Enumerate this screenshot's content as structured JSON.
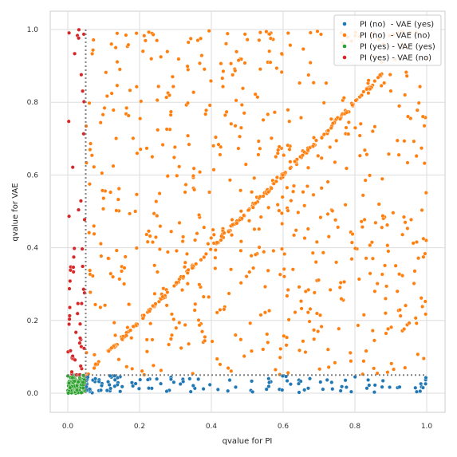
{
  "chart_data": {
    "type": "scatter",
    "title": "",
    "xlabel": "qvalue for PI",
    "ylabel": "qvalue for VAE",
    "xlim": [
      -0.05,
      1.05
    ],
    "ylim": [
      -0.05,
      1.05
    ],
    "xticks": [
      "0.0",
      "0.2",
      "0.4",
      "0.6",
      "0.8",
      "1.0"
    ],
    "yticks": [
      "0.0",
      "0.2",
      "0.4",
      "0.6",
      "0.8",
      "1.0"
    ],
    "grid": true,
    "legend_position": "top-right",
    "threshold": 0.05,
    "series": [
      {
        "name": "PI (no)  - VAE (yes)",
        "color": "#1f77b4"
      },
      {
        "name": "PI (no)  - VAE (no)",
        "color": "#ff7f0e"
      },
      {
        "name": "PI (yes) - VAE (yes)",
        "color": "#2ca02c"
      },
      {
        "name": "PI (yes) - VAE (no)",
        "color": "#d62728"
      }
    ]
  }
}
